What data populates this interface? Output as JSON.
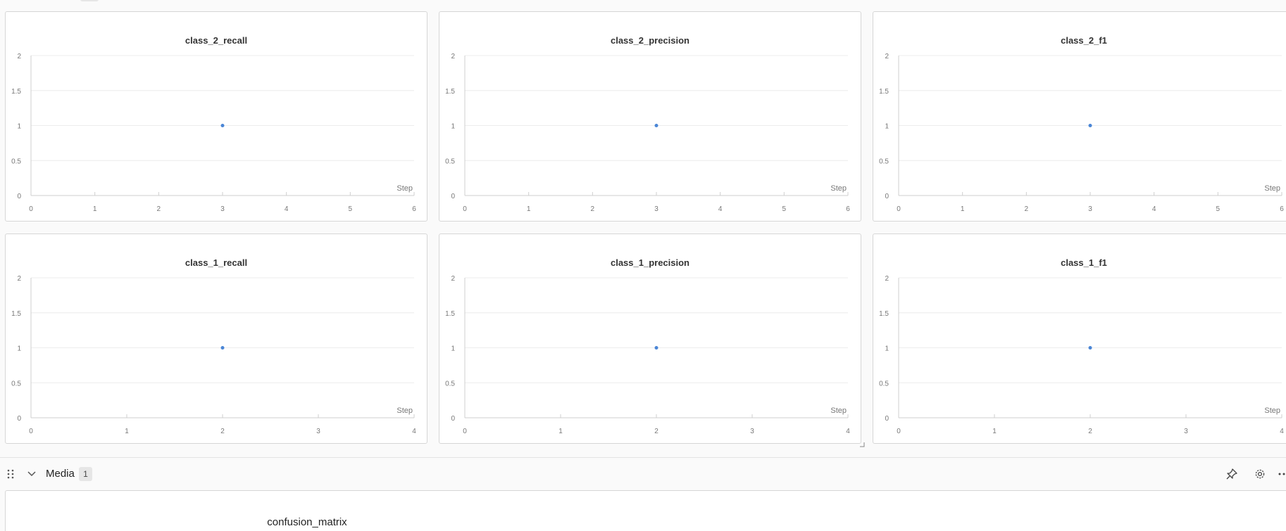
{
  "colors": {
    "point": "#4a86d6",
    "grid": "#ececec",
    "axis": "#cfcfcf",
    "tick_text": "#777777"
  },
  "panels": [
    {
      "id": "p0",
      "title": "class_2_recall",
      "xlabel": "Step"
    },
    {
      "id": "p1",
      "title": "class_2_precision",
      "xlabel": "Step"
    },
    {
      "id": "p2",
      "title": "class_2_f1",
      "xlabel": "Step"
    },
    {
      "id": "p3",
      "title": "class_1_recall",
      "xlabel": "Step"
    },
    {
      "id": "p4",
      "title": "class_1_precision",
      "xlabel": "Step"
    },
    {
      "id": "p5",
      "title": "class_1_f1",
      "xlabel": "Step"
    }
  ],
  "chart_data": [
    {
      "type": "scatter",
      "title": "class_2_recall",
      "xlabel": "Step",
      "ylabel": "",
      "xlim": [
        0,
        6
      ],
      "ylim": [
        0,
        2
      ],
      "xticks": [
        0,
        1,
        2,
        3,
        4,
        5,
        6
      ],
      "yticks": [
        0,
        0.5,
        1,
        1.5,
        2
      ],
      "series": [
        {
          "x": [
            3
          ],
          "y": [
            1
          ]
        }
      ]
    },
    {
      "type": "scatter",
      "title": "class_2_precision",
      "xlabel": "Step",
      "ylabel": "",
      "xlim": [
        0,
        6
      ],
      "ylim": [
        0,
        2
      ],
      "xticks": [
        0,
        1,
        2,
        3,
        4,
        5,
        6
      ],
      "yticks": [
        0,
        0.5,
        1,
        1.5,
        2
      ],
      "series": [
        {
          "x": [
            3
          ],
          "y": [
            1
          ]
        }
      ]
    },
    {
      "type": "scatter",
      "title": "class_2_f1",
      "xlabel": "Step",
      "ylabel": "",
      "xlim": [
        0,
        6
      ],
      "ylim": [
        0,
        2
      ],
      "xticks": [
        0,
        1,
        2,
        3,
        4,
        5,
        6
      ],
      "yticks": [
        0,
        0.5,
        1,
        1.5,
        2
      ],
      "series": [
        {
          "x": [
            3
          ],
          "y": [
            1
          ]
        }
      ]
    },
    {
      "type": "scatter",
      "title": "class_1_recall",
      "xlabel": "Step",
      "ylabel": "",
      "xlim": [
        0,
        4
      ],
      "ylim": [
        0,
        2
      ],
      "xticks": [
        0,
        1,
        2,
        3,
        4
      ],
      "yticks": [
        0,
        0.5,
        1,
        1.5,
        2
      ],
      "series": [
        {
          "x": [
            2
          ],
          "y": [
            1
          ]
        }
      ]
    },
    {
      "type": "scatter",
      "title": "class_1_precision",
      "xlabel": "Step",
      "ylabel": "",
      "xlim": [
        0,
        4
      ],
      "ylim": [
        0,
        2
      ],
      "xticks": [
        0,
        1,
        2,
        3,
        4
      ],
      "yticks": [
        0,
        0.5,
        1,
        1.5,
        2
      ],
      "series": [
        {
          "x": [
            2
          ],
          "y": [
            1
          ]
        }
      ]
    },
    {
      "type": "scatter",
      "title": "class_1_f1",
      "xlabel": "Step",
      "ylabel": "",
      "xlim": [
        0,
        4
      ],
      "ylim": [
        0,
        2
      ],
      "xticks": [
        0,
        1,
        2,
        3,
        4
      ],
      "yticks": [
        0,
        0.5,
        1,
        1.5,
        2
      ],
      "series": [
        {
          "x": [
            2
          ],
          "y": [
            1
          ]
        }
      ]
    }
  ],
  "media_section": {
    "label": "Media",
    "count": "1",
    "panel_title": "confusion_matrix"
  },
  "icons": {
    "drag": "drag-handle-icon",
    "collapse": "chevron-down-icon",
    "pin": "pin-icon",
    "settings": "gear-icon",
    "more": "more-icon"
  }
}
